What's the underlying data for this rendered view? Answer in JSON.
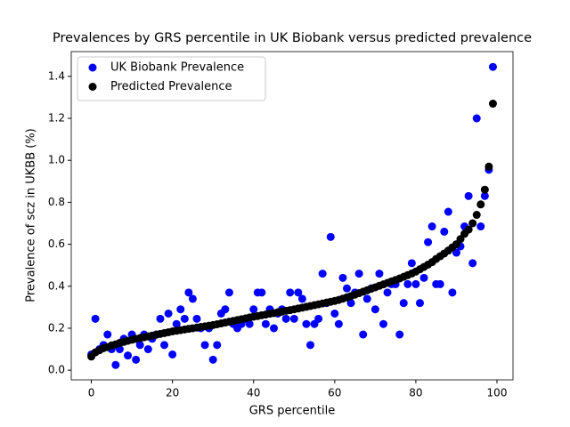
{
  "chart_data": {
    "type": "scatter",
    "title": "Prevalences by GRS percentile in UK Biobank versus predicted prevalence",
    "xlabel": "GRS percentile",
    "ylabel": "Prevalence of scz in UKBB (%)",
    "x": [
      0,
      1,
      2,
      3,
      4,
      5,
      6,
      7,
      8,
      9,
      10,
      11,
      12,
      13,
      14,
      15,
      16,
      17,
      18,
      19,
      20,
      21,
      22,
      23,
      24,
      25,
      26,
      27,
      28,
      29,
      30,
      31,
      32,
      33,
      34,
      35,
      36,
      37,
      38,
      39,
      40,
      41,
      42,
      43,
      44,
      45,
      46,
      47,
      48,
      49,
      50,
      51,
      52,
      53,
      54,
      55,
      56,
      57,
      58,
      59,
      60,
      61,
      62,
      63,
      64,
      65,
      66,
      67,
      68,
      69,
      70,
      71,
      72,
      73,
      74,
      75,
      76,
      77,
      78,
      79,
      80,
      81,
      82,
      83,
      84,
      85,
      86,
      87,
      88,
      89,
      90,
      91,
      92,
      93,
      94,
      95,
      96,
      97,
      98,
      99
    ],
    "series": [
      {
        "name": "UK Biobank Prevalence",
        "color": "#0000ff",
        "values": [
          0.075,
          0.245,
          0.1,
          0.12,
          0.17,
          0.1,
          0.025,
          0.1,
          0.15,
          0.07,
          0.17,
          0.05,
          0.12,
          0.17,
          0.1,
          0.15,
          0.17,
          0.245,
          0.12,
          0.27,
          0.075,
          0.22,
          0.29,
          0.245,
          0.37,
          0.34,
          0.245,
          0.2,
          0.12,
          0.2,
          0.05,
          0.12,
          0.27,
          0.29,
          0.37,
          0.22,
          0.2,
          0.22,
          0.245,
          0.22,
          0.29,
          0.37,
          0.37,
          0.22,
          0.29,
          0.2,
          0.27,
          0.29,
          0.245,
          0.37,
          0.245,
          0.37,
          0.34,
          0.22,
          0.12,
          0.22,
          0.245,
          0.46,
          0.32,
          0.635,
          0.27,
          0.22,
          0.44,
          0.39,
          0.32,
          0.37,
          0.46,
          0.17,
          0.34,
          0.39,
          0.29,
          0.46,
          0.22,
          0.37,
          0.41,
          0.41,
          0.17,
          0.32,
          0.41,
          0.51,
          0.41,
          0.32,
          0.44,
          0.61,
          0.685,
          0.41,
          0.41,
          0.66,
          0.755,
          0.37,
          0.56,
          0.59,
          0.685,
          0.83,
          0.51,
          1.2,
          0.685,
          0.83,
          0.955,
          1.445
        ]
      },
      {
        "name": "Predicted Prevalence",
        "color": "#000000",
        "values": [
          0.065,
          0.085,
          0.095,
          0.105,
          0.11,
          0.118,
          0.123,
          0.13,
          0.135,
          0.14,
          0.145,
          0.149,
          0.153,
          0.157,
          0.161,
          0.165,
          0.169,
          0.173,
          0.177,
          0.181,
          0.185,
          0.188,
          0.191,
          0.194,
          0.197,
          0.2,
          0.203,
          0.206,
          0.209,
          0.212,
          0.215,
          0.219,
          0.223,
          0.227,
          0.231,
          0.235,
          0.239,
          0.243,
          0.247,
          0.251,
          0.255,
          0.258,
          0.262,
          0.265,
          0.269,
          0.272,
          0.276,
          0.279,
          0.283,
          0.286,
          0.29,
          0.294,
          0.298,
          0.302,
          0.306,
          0.31,
          0.314,
          0.318,
          0.322,
          0.326,
          0.33,
          0.335,
          0.341,
          0.347,
          0.353,
          0.36,
          0.367,
          0.374,
          0.381,
          0.388,
          0.395,
          0.402,
          0.409,
          0.416,
          0.423,
          0.43,
          0.437,
          0.445,
          0.453,
          0.461,
          0.47,
          0.481,
          0.492,
          0.503,
          0.515,
          0.53,
          0.543,
          0.556,
          0.57,
          0.585,
          0.6,
          0.625,
          0.65,
          0.67,
          0.7,
          0.74,
          0.79,
          0.86,
          0.97,
          1.27
        ]
      }
    ],
    "xlim": [
      -4.95,
      103.95
    ],
    "ylim": [
      -0.046,
      1.518
    ],
    "xticks": [
      0,
      20,
      40,
      60,
      80,
      100
    ],
    "yticks": [
      {
        "value": 0,
        "label": "0.0"
      },
      0.2,
      0.4,
      0.6,
      0.8,
      {
        "value": 1,
        "label": "1.0"
      },
      1.2,
      1.4
    ],
    "legend": "upper left"
  }
}
